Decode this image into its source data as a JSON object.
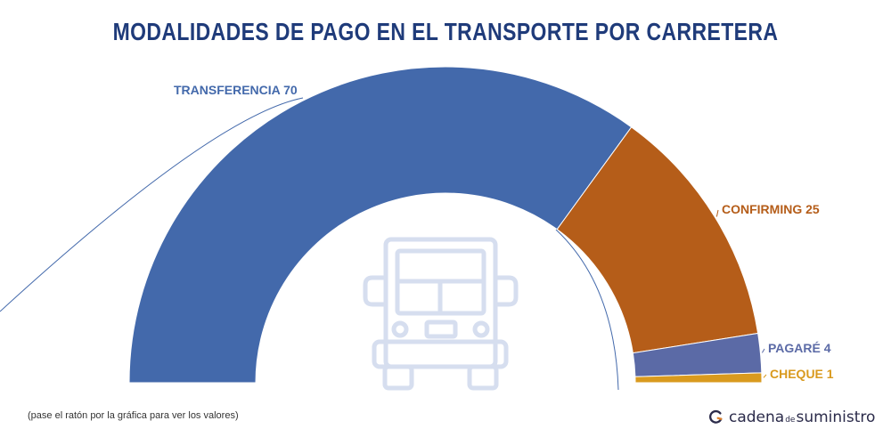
{
  "chart_data": {
    "type": "pie",
    "variant": "half-donut",
    "title": "MODALIDADES DE PAGO EN EL TRANSPORTE POR CARRETERA",
    "slices": [
      {
        "label": "TRANSFERENCIA",
        "value": 70,
        "color": "#4369ab"
      },
      {
        "label": "CONFIRMING",
        "value": 25,
        "color": "#b55d19"
      },
      {
        "label": "PAGARÉ",
        "value": 4,
        "color": "#5b6aa6"
      },
      {
        "label": "CHEQUE",
        "value": 1,
        "color": "#d99a1e"
      }
    ]
  },
  "colors": {
    "title": "#1f3b7a",
    "truck_icon": "#d6deef"
  },
  "footnote": "(pase el ratón por la gráfica para ver los valores)",
  "brand": {
    "part1": "cadena",
    "part2": "de",
    "part3": "suministro",
    "icon": "swirl-logo-icon"
  }
}
